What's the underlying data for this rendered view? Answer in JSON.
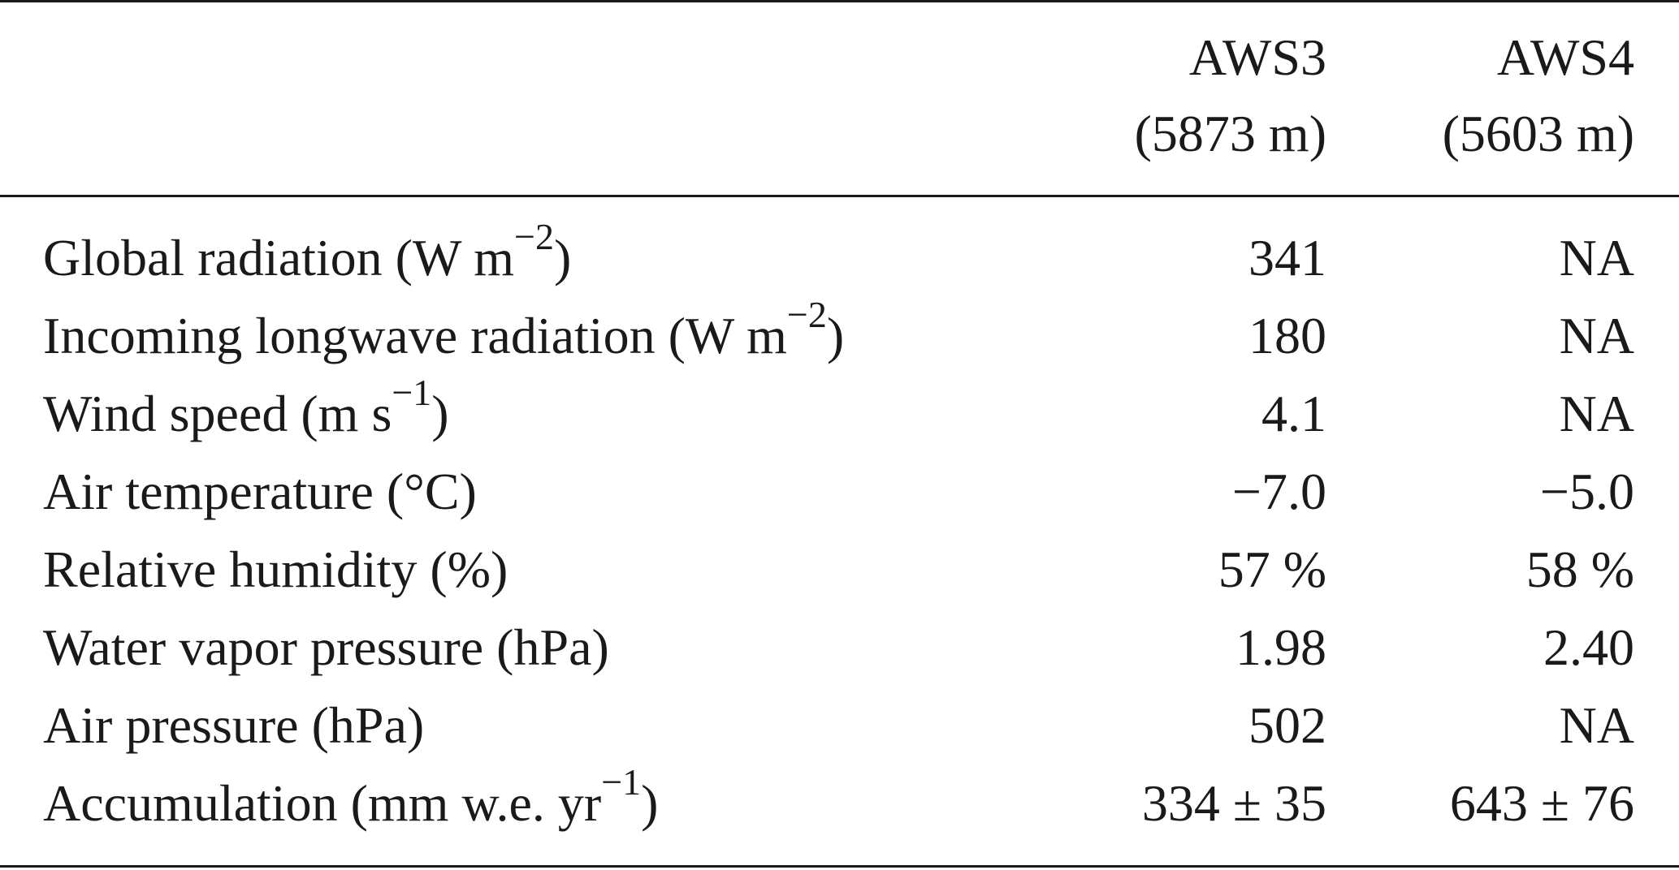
{
  "table": {
    "columns": [
      {
        "name": "AWS3",
        "elevation": "(5873 m)"
      },
      {
        "name": "AWS4",
        "elevation": "(5603 m)"
      }
    ],
    "rows": [
      {
        "label": "Global radiation (W m",
        "sup": "−2",
        "after": ")",
        "aws3": "341",
        "aws4": "NA"
      },
      {
        "label": "Incoming longwave radiation (W m",
        "sup": "−2",
        "after": ")",
        "aws3": "180",
        "aws4": "NA"
      },
      {
        "label": "Wind speed (m s",
        "sup": "−1",
        "after": ")",
        "aws3": "4.1",
        "aws4": "NA"
      },
      {
        "label": "Air temperature (°C)",
        "sup": "",
        "after": "",
        "aws3": "−7.0",
        "aws4": "−5.0"
      },
      {
        "label": "Relative humidity (%)",
        "sup": "",
        "after": "",
        "aws3": "57 %",
        "aws4": "58 %"
      },
      {
        "label": "Water vapor pressure (hPa)",
        "sup": "",
        "after": "",
        "aws3": "1.98",
        "aws4": "2.40"
      },
      {
        "label": "Air pressure (hPa)",
        "sup": "",
        "after": "",
        "aws3": "502",
        "aws4": "NA"
      },
      {
        "label": "Accumulation (mm w.e. yr",
        "sup": "−1",
        "after": ")",
        "aws3": "334 ± 35",
        "aws4": "643 ± 76"
      }
    ]
  }
}
